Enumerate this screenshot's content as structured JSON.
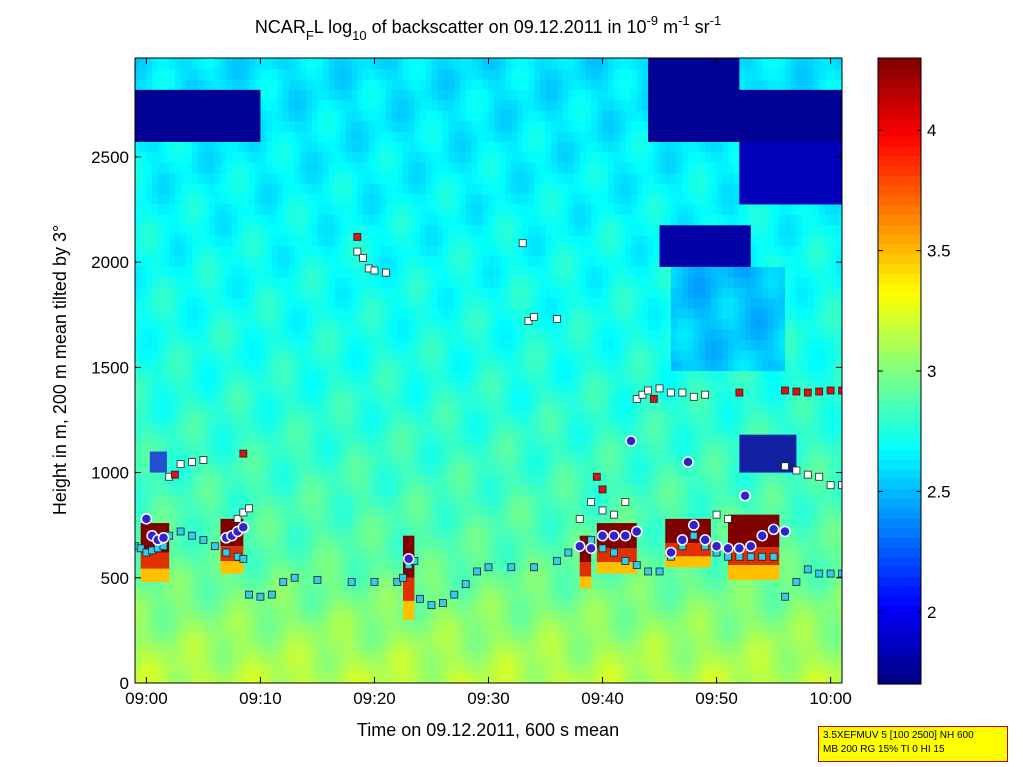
{
  "chart_data": {
    "type": "heatmap",
    "title": {
      "main": "NCAR",
      "sub": "F",
      "mid1": "L log",
      "sub2": "10",
      "mid2": " of backscatter on 09.12.2011 in 10",
      "sup1": "-9",
      "mid3": " m",
      "sup2": "-1",
      "mid4": " sr",
      "sup3": "-1"
    },
    "xlabel": "Time on 09.12.2011, 600 s mean",
    "ylabel": "Height in m, 200 m mean tilted by 3°",
    "x_ticks": [
      "09:00",
      "09:10",
      "09:20",
      "09:30",
      "09:40",
      "09:50",
      "10:00"
    ],
    "x_tick_minutes": [
      0,
      10,
      20,
      30,
      40,
      50,
      60
    ],
    "x_range_minutes": [
      -1,
      61
    ],
    "y_ticks": [
      0,
      500,
      1000,
      1500,
      2000,
      2500
    ],
    "y_range": [
      0,
      2970
    ],
    "colorbar": {
      "range": [
        1.7,
        4.3
      ],
      "ticks": [
        "2",
        "2.5",
        "3",
        "3.5",
        "4"
      ],
      "tick_values": [
        2,
        2.5,
        3,
        3.5,
        4
      ],
      "colormap": "jet"
    },
    "lines": [
      {
        "name": "cyan-squares",
        "color": "#33ccee",
        "points": [
          [
            -1,
            650
          ],
          [
            -0.5,
            640
          ],
          [
            0,
            620
          ],
          [
            0.5,
            630
          ],
          [
            1,
            640
          ],
          [
            1.5,
            650
          ],
          [
            2,
            700
          ],
          [
            3,
            720
          ],
          [
            4,
            700
          ],
          [
            5,
            680
          ],
          [
            6,
            650
          ],
          [
            7,
            620
          ],
          [
            8,
            600
          ],
          [
            8.5,
            590
          ],
          [
            9,
            420
          ],
          [
            10,
            410
          ],
          [
            11,
            420
          ],
          [
            12,
            480
          ],
          [
            13,
            500
          ],
          [
            15,
            490
          ],
          [
            18,
            480
          ],
          [
            20,
            480
          ],
          [
            22,
            480
          ],
          [
            22.5,
            500
          ],
          [
            23,
            560
          ],
          [
            23.5,
            580
          ],
          [
            24,
            400
          ],
          [
            25,
            370
          ],
          [
            26,
            380
          ],
          [
            27,
            420
          ],
          [
            28,
            470
          ],
          [
            29,
            530
          ],
          [
            30,
            550
          ],
          [
            32,
            550
          ],
          [
            34,
            550
          ],
          [
            36,
            580
          ],
          [
            37,
            620
          ],
          [
            38,
            650
          ],
          [
            39,
            680
          ],
          [
            40,
            640
          ],
          [
            41,
            620
          ],
          [
            42,
            580
          ],
          [
            43,
            560
          ],
          [
            44,
            530
          ],
          [
            45,
            530
          ],
          [
            46,
            600
          ],
          [
            47,
            650
          ],
          [
            48,
            700
          ],
          [
            49,
            650
          ],
          [
            50,
            620
          ],
          [
            51,
            600
          ],
          [
            52,
            600
          ],
          [
            53,
            600
          ],
          [
            54,
            600
          ],
          [
            55,
            600
          ],
          [
            56,
            410
          ],
          [
            57,
            480
          ],
          [
            58,
            540
          ],
          [
            59,
            520
          ],
          [
            60,
            520
          ],
          [
            61,
            520
          ]
        ]
      },
      {
        "name": "white-squares",
        "color": "#ffffff",
        "points": [
          [
            2,
            980
          ],
          [
            3,
            1040
          ],
          [
            4,
            1050
          ],
          [
            5,
            1060
          ],
          [
            8,
            780
          ],
          [
            8.5,
            810
          ],
          [
            9,
            830
          ],
          [
            18.5,
            2050
          ],
          [
            19,
            2020
          ],
          [
            19.5,
            1970
          ],
          [
            20,
            1960
          ],
          [
            21,
            1950
          ],
          [
            33,
            2090
          ],
          [
            33.5,
            1720
          ],
          [
            34,
            1740
          ],
          [
            36,
            1730
          ],
          [
            38,
            780
          ],
          [
            39,
            860
          ],
          [
            40,
            820
          ],
          [
            41,
            800
          ],
          [
            42,
            860
          ],
          [
            43,
            1350
          ],
          [
            43.5,
            1370
          ],
          [
            44,
            1390
          ],
          [
            45,
            1400
          ],
          [
            46,
            1380
          ],
          [
            47,
            1380
          ],
          [
            48,
            1360
          ],
          [
            49,
            1370
          ],
          [
            50,
            800
          ],
          [
            51,
            780
          ],
          [
            56,
            1030
          ],
          [
            57,
            1010
          ],
          [
            58,
            990
          ],
          [
            59,
            980
          ],
          [
            60,
            940
          ],
          [
            61,
            940
          ]
        ]
      },
      {
        "name": "red-squares",
        "color": "#dd1111",
        "points": [
          [
            2.5,
            990
          ],
          [
            8.5,
            1090
          ],
          [
            18.5,
            2120
          ],
          [
            39.5,
            980
          ],
          [
            40,
            920
          ],
          [
            44.5,
            1350
          ],
          [
            52,
            1380
          ],
          [
            56,
            1390
          ],
          [
            57,
            1385
          ],
          [
            58,
            1380
          ],
          [
            59,
            1385
          ],
          [
            60,
            1390
          ],
          [
            61,
            1390
          ]
        ]
      },
      {
        "name": "circles",
        "color": "#3322cc",
        "points": [
          [
            0,
            780
          ],
          [
            0.5,
            700
          ],
          [
            1,
            680
          ],
          [
            1.5,
            690
          ],
          [
            7,
            690
          ],
          [
            7.5,
            700
          ],
          [
            8,
            720
          ],
          [
            8.5,
            740
          ],
          [
            23,
            590
          ],
          [
            38,
            650
          ],
          [
            39,
            640
          ],
          [
            40,
            700
          ],
          [
            41,
            700
          ],
          [
            42,
            700
          ],
          [
            42.5,
            1150
          ],
          [
            43,
            720
          ],
          [
            46,
            620
          ],
          [
            47,
            680
          ],
          [
            47.5,
            1050
          ],
          [
            48,
            750
          ],
          [
            49,
            680
          ],
          [
            50,
            650
          ],
          [
            51,
            640
          ],
          [
            52,
            640
          ],
          [
            52.5,
            890
          ],
          [
            53,
            650
          ],
          [
            54,
            700
          ],
          [
            55,
            730
          ],
          [
            56,
            720
          ]
        ]
      }
    ]
  },
  "info_box": {
    "line1": "3.5XEFMUV 5 [100 2500] NH 600",
    "line2": "MB 200 RG 15% TI 0 HI 15"
  }
}
